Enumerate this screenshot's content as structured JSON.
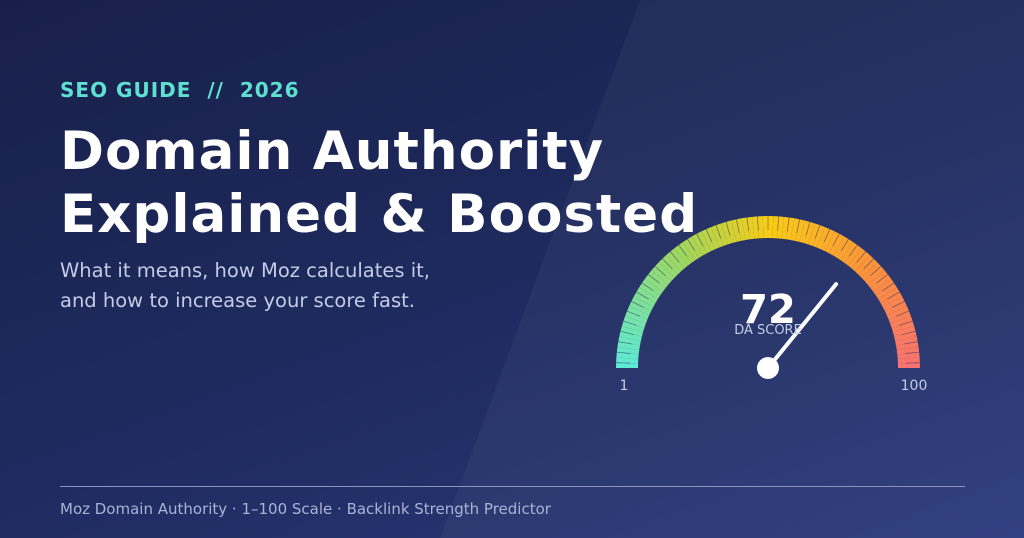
{
  "header": {
    "eyebrow": "SEO GUIDE  //  2026",
    "title": [
      "Domain Authority",
      "Explained & Boosted"
    ],
    "subtitle": [
      "What it means, how Moz calculates it,",
      "and how to increase your score fast."
    ]
  },
  "gauge": {
    "value": 72,
    "label": "DA SCORE",
    "min": 1,
    "max": 100
  },
  "footer": {
    "text": "Moz Domain Authority · 1–100 Scale · Backlink Strength Predictor"
  }
}
